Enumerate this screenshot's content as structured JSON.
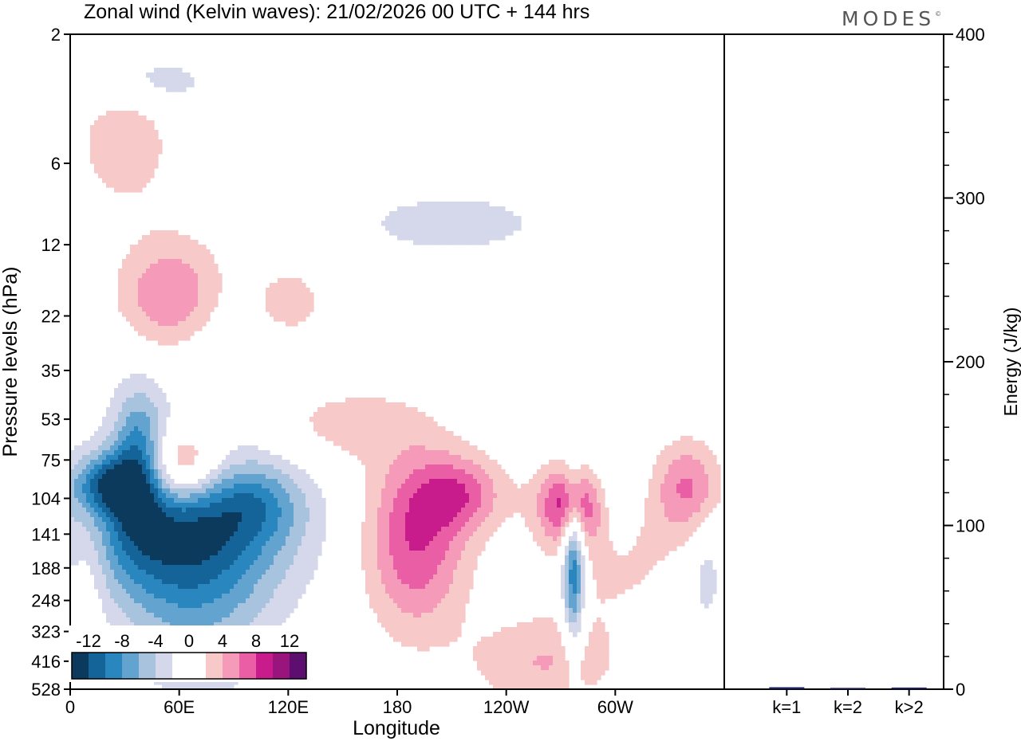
{
  "chart_data": [
    {
      "type": "heatmap",
      "title": "Zonal wind (Kelvin waves):  21/02/2026  00 UTC  + 144 hrs",
      "xlabel": "Longitude",
      "ylabel": "Pressure levels (hPa)",
      "x_ticks": [
        {
          "label": "0",
          "lon": 0
        },
        {
          "label": "60E",
          "lon": 60
        },
        {
          "label": "120E",
          "lon": 120
        },
        {
          "label": "180",
          "lon": 180
        },
        {
          "label": "120W",
          "lon": 240
        },
        {
          "label": "60W",
          "lon": 300
        }
      ],
      "xlim": [
        0,
        360
      ],
      "y_ticks": [
        "2",
        "6",
        "12",
        "22",
        "35",
        "53",
        "75",
        "104",
        "141",
        "188",
        "248",
        "323",
        "416",
        "528"
      ],
      "ylim": [
        "528",
        "2"
      ],
      "colorbar": {
        "labels": [
          "-12",
          "-8",
          "-4",
          "0",
          "4",
          "8",
          "12"
        ],
        "colors": [
          "#0b3a5c",
          "#14649a",
          "#2a86bf",
          "#62a3cf",
          "#a7c3de",
          "#d5d8ea",
          "#ffffff",
          "#ffffff",
          "#f8c9c9",
          "#f59ab9",
          "#ea5ea5",
          "#c81c8c",
          "#99157d",
          "#5c0f6e"
        ]
      },
      "blobs": [
        {
          "sign": "neg",
          "lon": 60,
          "lev": 135,
          "lw": 60,
          "lh": 2.6,
          "amp": 12
        },
        {
          "sign": "neg",
          "lon": 103,
          "lev": 108,
          "lw": 26,
          "lh": 1.3,
          "amp": 4
        },
        {
          "sign": "neg",
          "lon": 38,
          "lev": 75,
          "lw": 14,
          "lh": 2.2,
          "amp": 9
        },
        {
          "sign": "neg",
          "lon": 20,
          "lev": 92,
          "lw": 18,
          "lh": 1.0,
          "amp": 8
        },
        {
          "sign": "neg",
          "lon": 277,
          "lev": 188,
          "lw": 6,
          "lh": 2.6,
          "amp": 11
        },
        {
          "sign": "neg",
          "lon": 70,
          "lev": 300,
          "lw": 40,
          "lh": 3.0,
          "amp": 4
        },
        {
          "sign": "neg",
          "lon": 70,
          "lev": 30,
          "lw": 55,
          "lh": 2.0,
          "amp": 3
        },
        {
          "sign": "neg",
          "lon": 210,
          "lev": 10,
          "lw": 60,
          "lh": 1.2,
          "amp": 3
        },
        {
          "sign": "neg",
          "lon": 300,
          "lev": 104,
          "lw": 14,
          "lh": 2.0,
          "amp": 3
        },
        {
          "sign": "neg",
          "lon": 350,
          "lev": 200,
          "lw": 10,
          "lh": 2.0,
          "amp": 3
        },
        {
          "sign": "neg",
          "lon": 45,
          "lev": 3,
          "lw": 40,
          "lh": 1.0,
          "amp": 3
        },
        {
          "sign": "pos",
          "lon": 60,
          "lev": 80,
          "lw": 24,
          "lh": 1.3,
          "amp": 9
        },
        {
          "sign": "pos",
          "lon": 55,
          "lev": 20,
          "lw": 30,
          "lh": 2.2,
          "amp": 7
        },
        {
          "sign": "pos",
          "lon": 190,
          "lev": 150,
          "lw": 28,
          "lh": 3.0,
          "amp": 8
        },
        {
          "sign": "pos",
          "lon": 275,
          "lev": 110,
          "lw": 18,
          "lh": 1.3,
          "amp": 9
        },
        {
          "sign": "pos",
          "lon": 340,
          "lev": 95,
          "lw": 18,
          "lh": 1.6,
          "amp": 6
        },
        {
          "sign": "pos",
          "lon": 260,
          "lev": 420,
          "lw": 40,
          "lh": 1.6,
          "amp": 4
        },
        {
          "sign": "pos",
          "lon": 215,
          "lev": 100,
          "lw": 25,
          "lh": 1.3,
          "amp": 6
        },
        {
          "sign": "pos",
          "lon": 10,
          "lev": 175,
          "lw": 12,
          "lh": 2.4,
          "amp": 3
        },
        {
          "sign": "pos",
          "lon": 150,
          "lev": 55,
          "lw": 45,
          "lh": 1.4,
          "amp": 3
        },
        {
          "sign": "pos",
          "lon": 30,
          "lev": 5,
          "lw": 24,
          "lh": 2.0,
          "amp": 4
        },
        {
          "sign": "pos",
          "lon": 300,
          "lev": 160,
          "lw": 35,
          "lh": 2.5,
          "amp": 3
        },
        {
          "sign": "pos",
          "lon": 120,
          "lev": 20,
          "lw": 20,
          "lh": 1.2,
          "amp": 4
        }
      ]
    },
    {
      "type": "bar",
      "ylabel": "Energy (J/kg)",
      "ylim": [
        0,
        400
      ],
      "y_ticks": [
        "0",
        "100",
        "200",
        "300",
        "400"
      ],
      "categories": [
        "k=1",
        "k=2",
        "k>2"
      ],
      "values": [
        1.2,
        0.8,
        1.0
      ]
    }
  ],
  "logo": {
    "text": "MODES",
    "mark": "©"
  }
}
